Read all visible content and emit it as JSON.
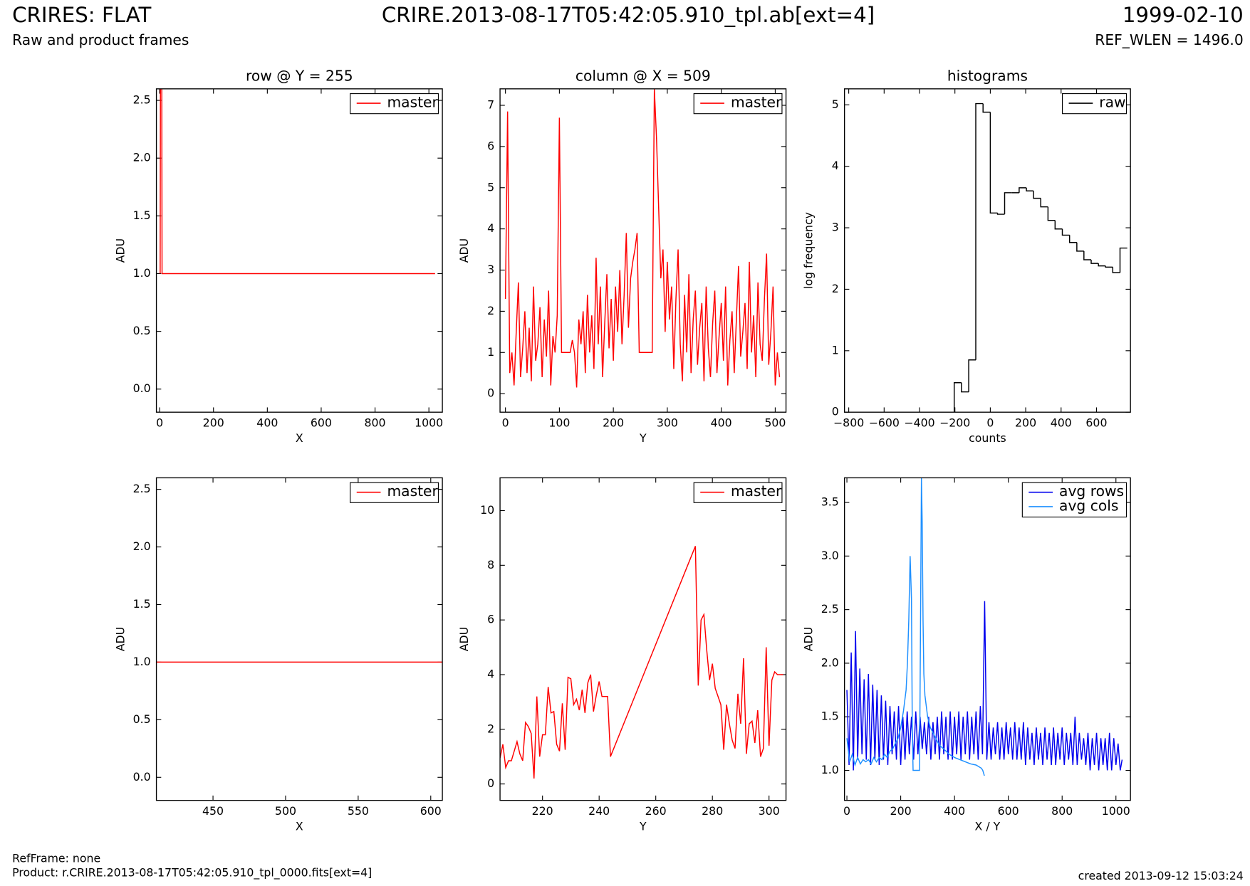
{
  "header": {
    "title": "CRIRES: FLAT",
    "subtitle": "Raw and product frames",
    "file": "CRIRE.2013-08-17T05:42:05.910_tpl.ab[ext=4]",
    "date": "1999-02-10",
    "ref_wlen": "REF_WLEN = 1496.0"
  },
  "footer": {
    "ref_frame": "RefFrame: none",
    "product": "Product: r.CRIRE.2013-08-17T05:42:05.910_tpl_0000.fits[ext=4]",
    "created": "created 2013-09-12 15:03:24"
  },
  "chart_data": [
    {
      "type": "line",
      "title": "row @ Y = 255",
      "x_label": "X",
      "y_label": "ADU",
      "legend": "upper right",
      "xlim": [
        -12,
        1050
      ],
      "ylim": [
        -0.2,
        2.6
      ],
      "xticks": [
        0,
        200,
        400,
        600,
        800,
        1000
      ],
      "yticks": [
        {
          "value": 0,
          "label": "0.0"
        },
        0.5,
        {
          "value": 1,
          "label": "1.0"
        },
        1.5,
        {
          "value": 2,
          "label": "2.0"
        },
        2.5
      ],
      "series": [
        {
          "name": "master",
          "color": "#ff0000",
          "x": [
            2,
            3,
            8,
            9,
            1023
          ],
          "values": [
            1.0,
            2.6,
            2.6,
            1.0,
            1.0
          ]
        }
      ]
    },
    {
      "type": "line",
      "title": "column @ X = 509",
      "x_label": "Y",
      "y_label": "ADU",
      "legend": "upper right",
      "xlim": [
        -10,
        520
      ],
      "ylim": [
        -0.45,
        7.4
      ],
      "xticks": [
        0,
        100,
        200,
        300,
        400,
        500
      ],
      "yticks": [
        0,
        1,
        2,
        3,
        4,
        5,
        6,
        7
      ],
      "series": [
        {
          "name": "master",
          "color": "#ff0000",
          "x": [
            0,
            4,
            8,
            12,
            16,
            20,
            24,
            28,
            32,
            36,
            40,
            44,
            48,
            52,
            56,
            60,
            64,
            68,
            72,
            76,
            80,
            84,
            88,
            92,
            96,
            100,
            104,
            108,
            112,
            116,
            120,
            124,
            128,
            132,
            136,
            140,
            144,
            148,
            152,
            156,
            160,
            164,
            168,
            172,
            176,
            180,
            184,
            188,
            192,
            196,
            200,
            204,
            208,
            212,
            216,
            220,
            224,
            228,
            232,
            236,
            240,
            244,
            248,
            252,
            256,
            260,
            264,
            268,
            272,
            276,
            280,
            284,
            288,
            292,
            296,
            300,
            304,
            308,
            312,
            316,
            320,
            324,
            328,
            332,
            336,
            340,
            344,
            348,
            352,
            356,
            360,
            364,
            368,
            372,
            376,
            380,
            384,
            388,
            392,
            396,
            400,
            404,
            408,
            412,
            416,
            420,
            424,
            428,
            432,
            436,
            440,
            444,
            448,
            452,
            456,
            460,
            464,
            468,
            472,
            476,
            480,
            484,
            488,
            492,
            496,
            500,
            504,
            508
          ],
          "values": [
            2.3,
            6.85,
            0.5,
            1.0,
            0.2,
            1.5,
            2.7,
            0.4,
            1.1,
            2.0,
            0.5,
            1.6,
            0.3,
            2.6,
            0.8,
            1.2,
            2.1,
            0.4,
            1.8,
            0.9,
            2.5,
            0.2,
            1.4,
            1.0,
            1.9,
            6.7,
            1.0,
            1.0,
            1.0,
            1.0,
            1.0,
            1.3,
            1.0,
            0.15,
            1.8,
            1.2,
            2.0,
            0.5,
            2.4,
            1.0,
            1.9,
            0.6,
            3.3,
            1.2,
            2.6,
            0.4,
            1.7,
            2.9,
            1.1,
            2.3,
            0.8,
            2.6,
            1.5,
            3.0,
            1.2,
            2.4,
            3.9,
            1.6,
            2.8,
            3.2,
            3.5,
            3.9,
            1.0,
            1.0,
            1.0,
            1.0,
            1.0,
            1.0,
            1.0,
            7.4,
            6.2,
            4.5,
            2.8,
            3.5,
            1.5,
            3.2,
            1.8,
            2.6,
            0.6,
            2.3,
            3.5,
            1.2,
            0.3,
            2.4,
            1.0,
            2.9,
            0.5,
            1.8,
            2.5,
            0.7,
            1.6,
            2.2,
            0.3,
            2.6,
            1.1,
            0.4,
            1.7,
            2.5,
            0.5,
            1.4,
            2.2,
            0.8,
            2.6,
            0.2,
            1.3,
            2.0,
            0.5,
            1.8,
            3.1,
            0.9,
            1.5,
            2.2,
            0.6,
            3.2,
            1.0,
            1.9,
            0.4,
            2.7,
            1.2,
            0.8,
            2.3,
            3.4,
            0.7,
            1.5,
            2.6,
            0.2,
            1.0,
            0.4
          ]
        }
      ]
    },
    {
      "type": "histogram",
      "title": "histograms",
      "x_label": "counts",
      "y_label": "log frequency",
      "legend": "upper right",
      "xlim": [
        -824,
        792
      ],
      "ylim": [
        0,
        5.26
      ],
      "xticks": [
        {
          "value": -800,
          "label": "−800"
        },
        {
          "value": -600,
          "label": "−600"
        },
        {
          "value": -400,
          "label": "−400"
        },
        {
          "value": -200,
          "label": "−200"
        },
        0,
        200,
        400,
        600
      ],
      "yticks": [
        0,
        1,
        2,
        3,
        4,
        5
      ],
      "bins": [
        -204,
        -163,
        -122,
        -82,
        -41,
        0,
        41,
        81,
        122,
        163,
        204,
        244,
        285,
        326,
        366,
        407,
        448,
        489,
        529,
        570,
        611,
        651,
        692,
        733,
        774
      ],
      "series": [
        {
          "name": "raw",
          "color": "#000000",
          "values": [
            0.48,
            0.33,
            0.85,
            5.02,
            4.88,
            3.24,
            3.22,
            3.57,
            3.57,
            3.65,
            3.6,
            3.48,
            3.34,
            3.12,
            2.98,
            2.88,
            2.76,
            2.62,
            2.48,
            2.42,
            2.38,
            2.36,
            2.27,
            2.67
          ]
        }
      ]
    },
    {
      "type": "line",
      "title": null,
      "x_label": "X",
      "y_label": "ADU",
      "legend": "upper right",
      "xlim": [
        411,
        608
      ],
      "ylim": [
        -0.2,
        2.6
      ],
      "xticks": [
        450,
        500,
        550,
        600
      ],
      "yticks": [
        {
          "value": 0,
          "label": "0.0"
        },
        0.5,
        {
          "value": 1,
          "label": "1.0"
        },
        1.5,
        {
          "value": 2,
          "label": "2.0"
        },
        2.5
      ],
      "series": [
        {
          "name": "master",
          "color": "#ff0000",
          "x": [
            411,
            608
          ],
          "values": [
            1.0,
            1.0
          ]
        }
      ]
    },
    {
      "type": "line",
      "title": null,
      "x_label": "Y",
      "y_label": "ADU",
      "legend": "upper right",
      "xlim": [
        205,
        306
      ],
      "ylim": [
        -0.6,
        11.2
      ],
      "xticks": [
        220,
        240,
        260,
        280,
        300
      ],
      "yticks": [
        0,
        2,
        4,
        6,
        8,
        10
      ],
      "series": [
        {
          "name": "master",
          "color": "#ff0000",
          "x": [
            205,
            206,
            207,
            208,
            209,
            210,
            211,
            212,
            213,
            214,
            215,
            216,
            217,
            218,
            219,
            220,
            221,
            222,
            223,
            224,
            225,
            226,
            227,
            228,
            229,
            230,
            231,
            232,
            233,
            234,
            235,
            236,
            237,
            238,
            239,
            240,
            241,
            242,
            243,
            244,
            274,
            275,
            276,
            277,
            278,
            279,
            280,
            281,
            282,
            283,
            284,
            285,
            286,
            287,
            288,
            289,
            290,
            291,
            292,
            293,
            294,
            295,
            296,
            297,
            298,
            299,
            300,
            301,
            302,
            303,
            304,
            305
          ],
          "values": [
            0.95,
            1.45,
            0.6,
            0.85,
            0.85,
            1.2,
            1.55,
            1.1,
            0.85,
            2.25,
            2.1,
            1.85,
            0.2,
            3.2,
            1.0,
            1.8,
            1.8,
            3.55,
            2.6,
            2.65,
            1.45,
            1.2,
            2.95,
            1.25,
            3.9,
            3.85,
            2.9,
            3.1,
            2.7,
            3.45,
            2.6,
            3.7,
            4.0,
            2.65,
            3.25,
            3.75,
            3.2,
            3.2,
            3.2,
            1.0,
            8.7,
            3.6,
            6.0,
            6.2,
            4.9,
            3.8,
            4.4,
            3.5,
            3.2,
            2.9,
            1.25,
            2.9,
            2.2,
            1.6,
            1.3,
            3.3,
            2.2,
            4.6,
            1.1,
            2.2,
            2.3,
            1.5,
            2.7,
            1.0,
            1.3,
            5.0,
            1.4,
            3.8,
            4.1,
            4.0,
            4.0,
            4.0
          ]
        }
      ]
    },
    {
      "type": "line",
      "title": null,
      "x_label": "X / Y",
      "y_label": "ADU",
      "legend": "upper right",
      "xlim": [
        -9,
        1054
      ],
      "ylim": [
        0.72,
        3.73
      ],
      "xticks": [
        0,
        200,
        400,
        600,
        800,
        1000
      ],
      "yticks": [
        {
          "value": 1,
          "label": "1.0"
        },
        1.5,
        {
          "value": 2,
          "label": "2.0"
        },
        2.5,
        {
          "value": 3,
          "label": "3.0"
        },
        3.5
      ],
      "series": [
        {
          "name": "avg rows",
          "color": "#0000ee",
          "x": [
            0,
            8,
            16,
            24,
            32,
            40,
            48,
            56,
            64,
            72,
            80,
            88,
            96,
            104,
            112,
            120,
            128,
            136,
            144,
            152,
            160,
            168,
            176,
            184,
            192,
            200,
            208,
            216,
            224,
            232,
            240,
            248,
            256,
            264,
            272,
            280,
            288,
            296,
            304,
            312,
            320,
            328,
            336,
            344,
            352,
            360,
            368,
            376,
            384,
            392,
            400,
            408,
            416,
            424,
            432,
            440,
            448,
            456,
            464,
            472,
            480,
            488,
            496,
            504,
            512,
            520,
            528,
            536,
            544,
            552,
            560,
            568,
            576,
            584,
            592,
            600,
            608,
            616,
            624,
            632,
            640,
            648,
            656,
            664,
            672,
            680,
            688,
            696,
            704,
            712,
            720,
            728,
            736,
            744,
            752,
            760,
            768,
            776,
            784,
            792,
            800,
            808,
            816,
            824,
            832,
            840,
            848,
            856,
            864,
            872,
            880,
            888,
            896,
            904,
            912,
            920,
            928,
            936,
            944,
            952,
            960,
            968,
            976,
            984,
            992,
            1000,
            1008,
            1016,
            1023
          ],
          "values": [
            1.75,
            1.05,
            2.1,
            1.0,
            2.3,
            1.1,
            1.95,
            1.15,
            1.85,
            1.1,
            1.9,
            1.05,
            1.8,
            1.1,
            1.75,
            1.05,
            1.7,
            1.1,
            1.65,
            1.05,
            1.6,
            1.15,
            1.55,
            1.1,
            1.6,
            1.05,
            1.5,
            1.1,
            1.55,
            1.15,
            1.5,
            1.1,
            1.55,
            1.15,
            1.5,
            1.2,
            1.45,
            1.15,
            1.5,
            1.1,
            1.45,
            1.15,
            1.5,
            1.1,
            1.55,
            1.15,
            1.5,
            1.1,
            1.55,
            1.1,
            1.5,
            1.15,
            1.55,
            1.1,
            1.5,
            1.15,
            1.55,
            1.1,
            1.5,
            1.15,
            1.55,
            1.1,
            1.6,
            1.15,
            2.58,
            1.1,
            1.45,
            1.1,
            1.4,
            1.15,
            1.45,
            1.1,
            1.4,
            1.1,
            1.45,
            1.15,
            1.4,
            1.1,
            1.45,
            1.1,
            1.4,
            1.1,
            1.45,
            1.05,
            1.4,
            1.1,
            1.35,
            1.05,
            1.4,
            1.1,
            1.35,
            1.05,
            1.4,
            1.1,
            1.35,
            1.05,
            1.4,
            1.05,
            1.35,
            1.1,
            1.4,
            1.05,
            1.35,
            1.1,
            1.35,
            1.05,
            1.5,
            1.05,
            1.35,
            1.1,
            1.3,
            1.05,
            1.35,
            1.0,
            1.3,
            1.05,
            1.35,
            1.0,
            1.3,
            1.05,
            1.3,
            1.0,
            1.35,
            1.0,
            1.3,
            1.05,
            1.25,
            1.0,
            1.1
          ]
        },
        {
          "name": "avg cols",
          "color": "#1e90ff",
          "x": [
            0,
            10,
            20,
            30,
            40,
            50,
            60,
            70,
            80,
            90,
            100,
            110,
            120,
            130,
            140,
            150,
            160,
            170,
            180,
            190,
            200,
            210,
            220,
            225,
            230,
            235,
            240,
            243,
            246,
            250,
            260,
            270,
            274,
            277,
            280,
            283,
            286,
            290,
            295,
            300,
            310,
            320,
            330,
            340,
            350,
            360,
            380,
            400,
            420,
            440,
            460,
            480,
            500,
            505,
            511
          ],
          "values": [
            1.3,
            1.08,
            1.15,
            1.05,
            1.12,
            1.06,
            1.1,
            1.08,
            1.1,
            1.06,
            1.12,
            1.08,
            1.12,
            1.1,
            1.15,
            1.12,
            1.18,
            1.2,
            1.25,
            1.3,
            1.4,
            1.55,
            1.75,
            2.0,
            2.4,
            3.0,
            2.6,
            1.4,
            1.0,
            1.0,
            1.0,
            1.0,
            2.5,
            3.73,
            3.3,
            2.4,
            1.9,
            1.7,
            1.6,
            1.5,
            1.4,
            1.35,
            1.3,
            1.25,
            1.22,
            1.2,
            1.15,
            1.12,
            1.1,
            1.08,
            1.06,
            1.05,
            1.02,
            1.0,
            0.95
          ]
        }
      ]
    }
  ]
}
